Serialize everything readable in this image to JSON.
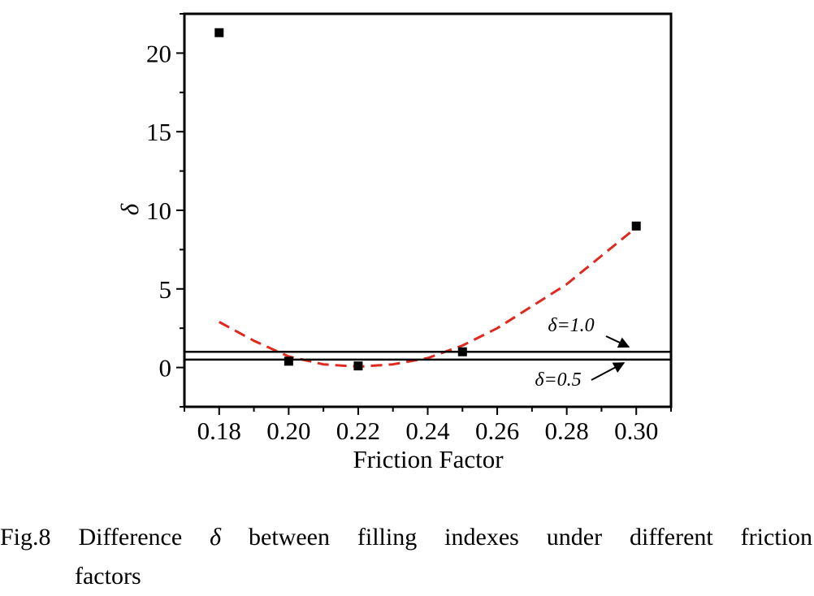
{
  "chart_data": {
    "type": "scatter",
    "xlabel": "Friction Factor",
    "ylabel": "δ",
    "xlim": [
      0.17,
      0.31
    ],
    "ylim": [
      -2.5,
      22.5
    ],
    "xticks": [
      "0.18",
      "0.20",
      "0.22",
      "0.24",
      "0.26",
      "0.28",
      "0.30"
    ],
    "yticks": [
      "0",
      "5",
      "10",
      "15",
      "20"
    ],
    "grid": false,
    "points": {
      "x": [
        0.18,
        0.2,
        0.22,
        0.25,
        0.3
      ],
      "y": [
        21.3,
        0.4,
        0.1,
        1.0,
        9.0
      ],
      "marker": "square",
      "color": "#000000"
    },
    "fit_curve": {
      "style": "dashed",
      "color": "#e0281e",
      "x": [
        0.18,
        0.19,
        0.2,
        0.21,
        0.22,
        0.23,
        0.24,
        0.25,
        0.26,
        0.27,
        0.28,
        0.29,
        0.3
      ],
      "y": [
        2.9,
        1.7,
        0.7,
        0.2,
        0.05,
        0.2,
        0.6,
        1.4,
        2.5,
        3.9,
        5.3,
        7.1,
        8.9
      ]
    },
    "reference_lines": [
      {
        "y": 1.0,
        "label": "δ=1.0",
        "color": "#000000"
      },
      {
        "y": 0.5,
        "label": "δ=0.5",
        "color": "#000000"
      }
    ]
  },
  "caption": {
    "prefix": "Fig.8",
    "words": [
      "Difference",
      "δ",
      "between",
      "filling",
      "indexes",
      "under",
      "different",
      "friction"
    ],
    "line2": "factors"
  }
}
